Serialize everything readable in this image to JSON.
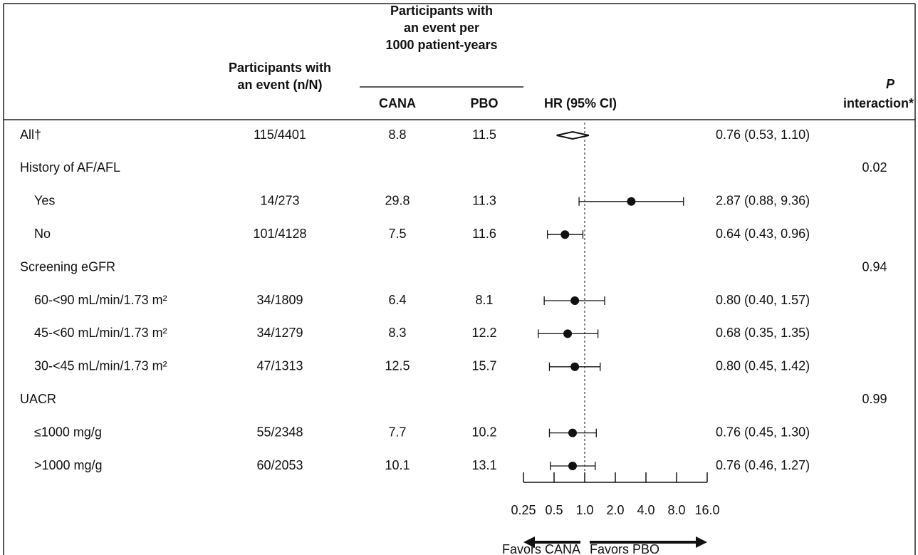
{
  "chart_data": {
    "type": "forest",
    "headers": {
      "events": [
        "Participants with",
        "an event (n/N)"
      ],
      "rate_group": [
        "Participants with",
        "an event per",
        "1000 patient-years"
      ],
      "cana": "CANA",
      "pbo": "PBO",
      "hr": "HR (95% CI)",
      "p": [
        "P",
        "interaction*"
      ]
    },
    "overall": {
      "label": "All†",
      "events": "115/4401",
      "cana": 8.8,
      "pbo": 11.5,
      "hr": 0.76,
      "lo": 0.53,
      "hi": 1.1,
      "value_label": "0.76 (0.53, 1.10)"
    },
    "groups": [
      {
        "label": "History of AF/AFL",
        "p": 0.02,
        "rows": [
          {
            "label": "Yes",
            "events": "14/273",
            "cana": 29.8,
            "pbo": 11.3,
            "hr": 2.87,
            "lo": 0.88,
            "hi": 9.36,
            "value_label": "2.87 (0.88, 9.36)"
          },
          {
            "label": "No",
            "events": "101/4128",
            "cana": 7.5,
            "pbo": 11.6,
            "hr": 0.64,
            "lo": 0.43,
            "hi": 0.96,
            "value_label": "0.64 (0.43, 0.96)"
          }
        ]
      },
      {
        "label": "Screening eGFR",
        "p": 0.94,
        "rows": [
          {
            "label": "60-<90 mL/min/1.73 m²",
            "events": "34/1809",
            "cana": 6.4,
            "pbo": 8.1,
            "hr": 0.8,
            "lo": 0.4,
            "hi": 1.57,
            "value_label": "0.80 (0.40, 1.57)"
          },
          {
            "label": "45-<60 mL/min/1.73 m²",
            "events": "34/1279",
            "cana": 8.3,
            "pbo": 12.2,
            "hr": 0.68,
            "lo": 0.35,
            "hi": 1.35,
            "value_label": "0.68 (0.35, 1.35)"
          },
          {
            "label": "30-<45 mL/min/1.73 m²",
            "events": "47/1313",
            "cana": 12.5,
            "pbo": 15.7,
            "hr": 0.8,
            "lo": 0.45,
            "hi": 1.42,
            "value_label": "0.80 (0.45, 1.42)"
          }
        ]
      },
      {
        "label": "UACR",
        "p": 0.99,
        "rows": [
          {
            "label": "≤1000 mg/g",
            "events": "55/2348",
            "cana": 7.7,
            "pbo": 10.2,
            "hr": 0.76,
            "lo": 0.45,
            "hi": 1.3,
            "value_label": "0.76 (0.45, 1.30)"
          },
          {
            "label": ">1000 mg/g",
            "events": "60/2053",
            "cana": 10.1,
            "pbo": 13.1,
            "hr": 0.76,
            "lo": 0.46,
            "hi": 1.27,
            "value_label": "0.76 (0.46, 1.27)"
          }
        ]
      }
    ],
    "xscale": "log",
    "xlim": [
      0.25,
      16
    ],
    "reference": 1,
    "xticks": [
      0.25,
      0.5,
      {
        "value": 1,
        "label": "1.0"
      },
      {
        "value": 2,
        "label": "2.0"
      },
      {
        "value": 4,
        "label": "4.0"
      },
      {
        "value": 8,
        "label": "8.0"
      },
      {
        "value": 16,
        "label": "16.0"
      }
    ],
    "arrows": [
      "Favors CANA",
      "Favors PBO"
    ]
  }
}
